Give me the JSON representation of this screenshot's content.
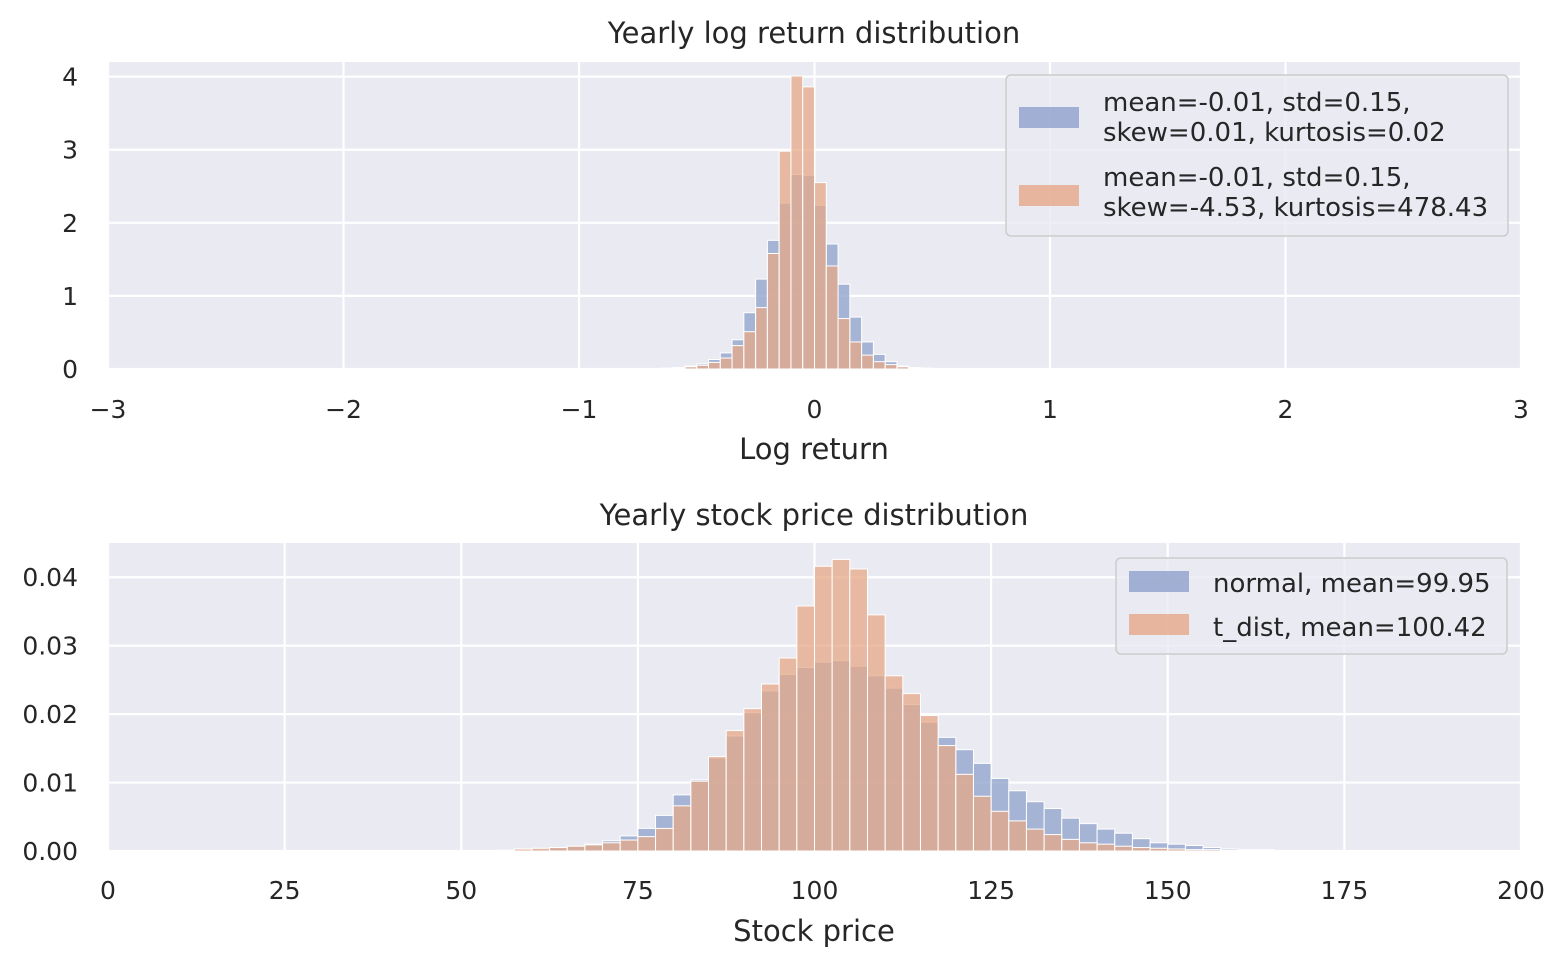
{
  "chart_data": [
    {
      "type": "bar",
      "title": "Yearly log return distribution",
      "xlabel": "Log return",
      "ylabel": "",
      "xlim": [
        -3,
        3
      ],
      "ylim": [
        0,
        4.2
      ],
      "grid": true,
      "legend_position": "top-right",
      "xticks": [
        {
          "value": -3,
          "label": "−3"
        },
        {
          "value": -2,
          "label": "−2"
        },
        {
          "value": -1,
          "label": "−1"
        },
        {
          "value": 0,
          "label": "0"
        },
        {
          "value": 1,
          "label": "1"
        },
        {
          "value": 2,
          "label": "2"
        },
        {
          "value": 3,
          "label": "3"
        }
      ],
      "yticks": [
        {
          "value": 0,
          "label": "0"
        },
        {
          "value": 1,
          "label": "1"
        },
        {
          "value": 2,
          "label": "2"
        },
        {
          "value": 3,
          "label": "3"
        },
        {
          "value": 4,
          "label": "4"
        }
      ],
      "series": [
        {
          "name": "mean=-0.01, std=0.15,\nskew=0.01, kurtosis=0.02",
          "color": "#8da0cb",
          "bin_width": 0.05,
          "bin_edges_start": -0.65,
          "values": [
            0.01,
            0.02,
            0.04,
            0.07,
            0.13,
            0.22,
            0.4,
            0.77,
            1.23,
            1.76,
            2.27,
            2.66,
            2.65,
            2.24,
            1.71,
            1.16,
            0.71,
            0.37,
            0.2,
            0.1,
            0.04,
            0.02,
            0.01
          ]
        },
        {
          "name": "mean=-0.01, std=0.15,\nskew=-4.53, kurtosis=478.43",
          "color": "#e6a887",
          "bin_width": 0.05,
          "bin_edges_start": -0.65,
          "values": [
            0.01,
            0.01,
            0.03,
            0.05,
            0.09,
            0.15,
            0.32,
            0.51,
            0.84,
            1.58,
            2.98,
            4.01,
            3.86,
            2.55,
            1.41,
            0.69,
            0.37,
            0.19,
            0.1,
            0.06,
            0.03,
            0.01,
            0.01
          ]
        }
      ]
    },
    {
      "type": "bar",
      "title": "Yearly stock price distribution",
      "xlabel": "Stock price",
      "ylabel": "",
      "xlim": [
        0,
        200
      ],
      "ylim": [
        0,
        0.045
      ],
      "grid": true,
      "legend_position": "top-right",
      "xticks": [
        {
          "value": 0,
          "label": "0"
        },
        {
          "value": 25,
          "label": "25"
        },
        {
          "value": 50,
          "label": "50"
        },
        {
          "value": 75,
          "label": "75"
        },
        {
          "value": 100,
          "label": "100"
        },
        {
          "value": 125,
          "label": "125"
        },
        {
          "value": 150,
          "label": "150"
        },
        {
          "value": 175,
          "label": "175"
        },
        {
          "value": 200,
          "label": "200"
        }
      ],
      "yticks": [
        {
          "value": 0,
          "label": "0.00"
        },
        {
          "value": 0.01,
          "label": "0.01"
        },
        {
          "value": 0.02,
          "label": "0.02"
        },
        {
          "value": 0.03,
          "label": "0.03"
        },
        {
          "value": 0.04,
          "label": "0.04"
        }
      ],
      "series": [
        {
          "name": "normal, mean=99.95",
          "color": "#8da0cb",
          "bin_width": 2.5,
          "bin_edges_start": 55,
          "values": [
            0.0001,
            0.0002,
            0.0003,
            0.0005,
            0.0007,
            0.001,
            0.0015,
            0.0022,
            0.0033,
            0.0052,
            0.0082,
            0.0104,
            0.0136,
            0.0168,
            0.0202,
            0.0234,
            0.0258,
            0.0268,
            0.0276,
            0.0278,
            0.027,
            0.0256,
            0.0238,
            0.0214,
            0.0188,
            0.0166,
            0.0148,
            0.0128,
            0.0106,
            0.0088,
            0.0072,
            0.0062,
            0.0048,
            0.004,
            0.0032,
            0.0026,
            0.0018,
            0.0012,
            0.001,
            0.0008,
            0.0005,
            0.0003,
            0.0002,
            0.0002
          ]
        },
        {
          "name": "t_dist, mean=100.42",
          "color": "#e6a887",
          "bin_width": 2.5,
          "bin_edges_start": 55,
          "values": [
            0.0001,
            0.0003,
            0.0004,
            0.0005,
            0.0007,
            0.0009,
            0.0012,
            0.0016,
            0.0021,
            0.0033,
            0.0066,
            0.0102,
            0.0138,
            0.0176,
            0.0208,
            0.0244,
            0.0282,
            0.0358,
            0.0416,
            0.0426,
            0.0412,
            0.0345,
            0.0256,
            0.023,
            0.0198,
            0.0154,
            0.0112,
            0.008,
            0.0058,
            0.0044,
            0.0032,
            0.0024,
            0.0017,
            0.0012,
            0.001,
            0.0007,
            0.0005,
            0.0004,
            0.0003,
            0.0002,
            0.0002,
            0.0001,
            0.0001,
            0.0001
          ]
        }
      ]
    }
  ]
}
